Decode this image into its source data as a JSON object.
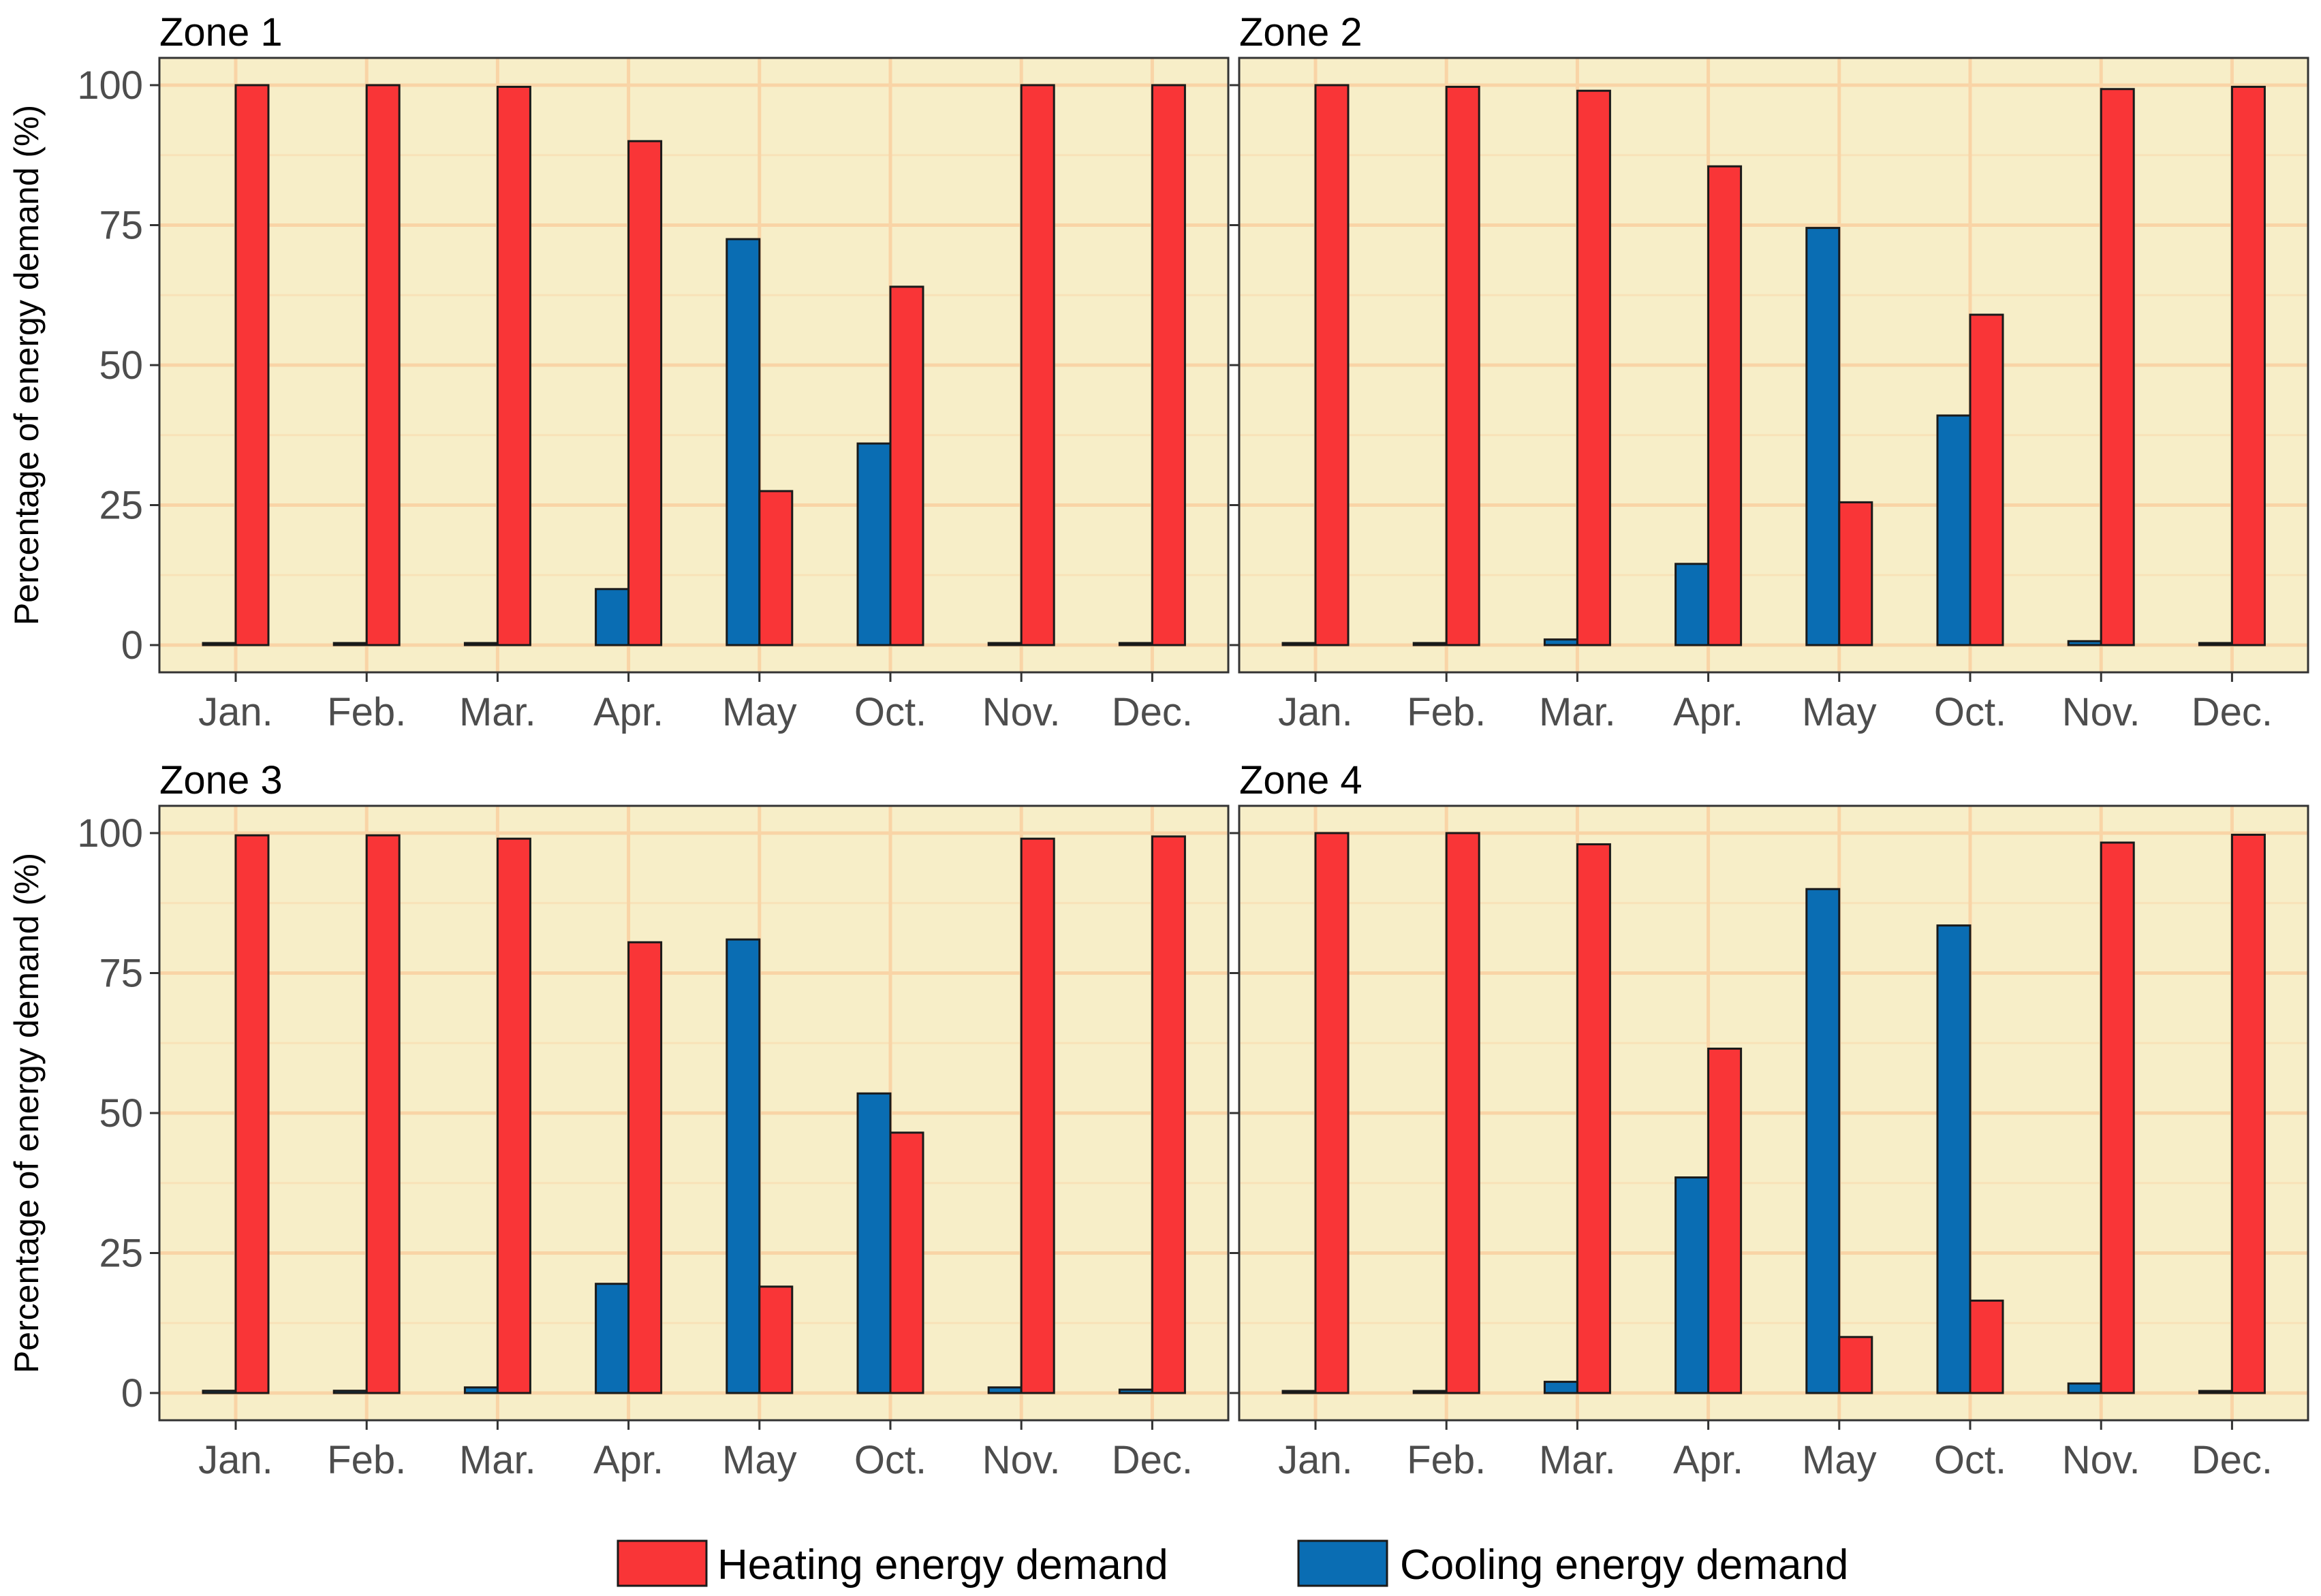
{
  "chart_data": {
    "type": "bar",
    "ylabel": "Percentage of energy demand (%)",
    "ylim": [
      0,
      105
    ],
    "yticks": [
      0,
      25,
      50,
      75,
      100
    ],
    "grid": true,
    "legend_position": "bottom",
    "colors": {
      "panel_background": "#f7eec8",
      "grid_major": "#f9d4a6",
      "grid_minor": "#f8e2b8",
      "bar_outline": "#1a1a1a",
      "panel_border": "#333333"
    },
    "categories": [
      "Jan.",
      "Feb.",
      "Mar.",
      "Apr.",
      "May",
      "Oct.",
      "Nov.",
      "Dec."
    ],
    "series_meta": [
      {
        "key": "cooling",
        "name": "Cooling energy demand",
        "color": "#0a6db3"
      },
      {
        "key": "heating",
        "name": "Heating energy demand",
        "color": "#f93537"
      }
    ],
    "legend_order": [
      "heating",
      "cooling"
    ],
    "panels": [
      {
        "title": "Zone 1",
        "cooling": [
          0,
          0,
          0.3,
          10,
          72.5,
          36,
          0,
          0
        ],
        "heating": [
          100,
          100,
          99.7,
          90,
          27.5,
          64,
          100,
          100
        ]
      },
      {
        "title": "Zone 2",
        "cooling": [
          0,
          0.3,
          1,
          14.5,
          74.5,
          41,
          0.7,
          0.3
        ],
        "heating": [
          100,
          99.7,
          99,
          85.5,
          25.5,
          59,
          99.3,
          99.7
        ]
      },
      {
        "title": "Zone 3",
        "cooling": [
          0.4,
          0.4,
          1,
          19.5,
          81,
          53.5,
          1,
          0.6
        ],
        "heating": [
          99.6,
          99.6,
          99,
          80.5,
          19,
          46.5,
          99,
          99.4
        ]
      },
      {
        "title": "Zone 4",
        "cooling": [
          0,
          0,
          2,
          38.5,
          90,
          83.5,
          1.7,
          0.3
        ],
        "heating": [
          100,
          100,
          98,
          61.5,
          10,
          16.5,
          98.3,
          99.7
        ]
      }
    ]
  }
}
